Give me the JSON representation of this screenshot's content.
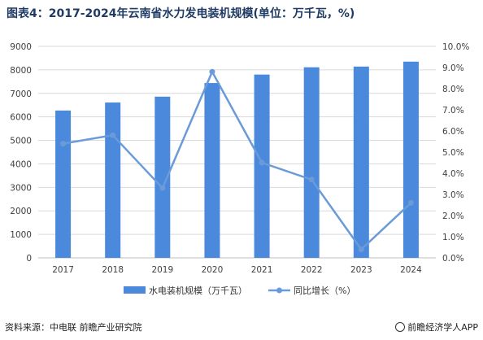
{
  "chart_data": {
    "type": "bar+line",
    "title": "图表4：2017-2024年云南省水力发电装机规模(单位：万千瓦，%)",
    "categories": [
      "2017",
      "2018",
      "2019",
      "2020",
      "2021",
      "2022",
      "2023",
      "2024"
    ],
    "series": [
      {
        "name": "水电装机规模（万千瓦）",
        "type": "bar",
        "axis": "left",
        "color": "#4a89dc",
        "values": [
          6270,
          6610,
          6860,
          7440,
          7800,
          8110,
          8140,
          8350
        ]
      },
      {
        "name": "同比增长（%）",
        "type": "line",
        "axis": "right",
        "color": "#6a9bd8",
        "values": [
          5.4,
          5.8,
          3.3,
          8.8,
          4.5,
          3.7,
          0.4,
          2.6
        ]
      }
    ],
    "y_left": {
      "min": 0,
      "max": 9000,
      "ticks": [
        "0",
        "1000",
        "2000",
        "3000",
        "4000",
        "5000",
        "6000",
        "7000",
        "8000",
        "9000"
      ]
    },
    "y_right": {
      "min": 0,
      "max": 10,
      "ticks": [
        "0.0%",
        "1.0%",
        "2.0%",
        "3.0%",
        "4.0%",
        "5.0%",
        "6.0%",
        "7.0%",
        "8.0%",
        "9.0%",
        "10.0%"
      ]
    },
    "grid": true,
    "legend": "bottom"
  },
  "footer": {
    "source": "资料来源：中电联 前瞻产业研究院",
    "brand": "前瞻经济学人APP"
  }
}
